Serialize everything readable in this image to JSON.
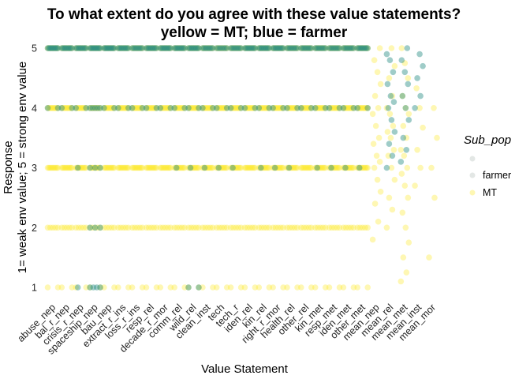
{
  "chart_data": {
    "type": "scatter",
    "title": "To what extent do you agree with these value statements?",
    "subtitle": "yellow = MT; blue = farmer",
    "xlabel": "Value Statement",
    "ylabel_line1": "Response",
    "ylabel_line2": "1= weak env value; 5 = strong env value",
    "yticks": [
      1,
      2,
      3,
      4,
      5
    ],
    "ylim": [
      0.75,
      5.2
    ],
    "grid": false,
    "legend": {
      "title": "Sub_pop",
      "placement": "right",
      "entries": [
        {
          "label": "",
          "color": "#c8d0cc"
        },
        {
          "label": "farmer",
          "color": "#2a8f84"
        },
        {
          "label": "MT",
          "color": "#fde725"
        }
      ]
    },
    "colors": {
      "farmer": "#2a8f84",
      "MT": "#fde725",
      "other": "#c8d0cc"
    },
    "categories": [
      "abuse_nep",
      "bal_r_nep",
      "crisis_r_nep",
      "spaceship_nep",
      "bau_nep",
      "extract_r_ins",
      "loss_r_ins",
      "resp_rel",
      "decade_r_mor",
      "comm_rel",
      "wild_rel",
      "clean_inst",
      "tech",
      "tech_r",
      "iden_rel",
      "kin_rel",
      "right_r_mor",
      "health_rel",
      "other_rel",
      "kin_met",
      "resp_met",
      "iden_met",
      "other_met",
      "mean_nep",
      "mean_rel",
      "mean_met",
      "mean_inst",
      "mean_mor"
    ],
    "series": [
      {
        "name": "farmer",
        "distribution": [
          [
            0,
            0,
            0,
            2,
            10
          ],
          [
            0,
            0,
            0,
            2,
            9
          ],
          [
            1,
            0,
            1,
            2,
            9
          ],
          [
            4,
            3,
            3,
            5,
            10
          ],
          [
            0,
            0,
            0,
            2,
            10
          ],
          [
            0,
            0,
            0,
            2,
            9
          ],
          [
            0,
            0,
            0,
            2,
            8
          ],
          [
            0,
            0,
            0,
            2,
            9
          ],
          [
            0,
            0,
            0,
            2,
            9
          ],
          [
            0,
            0,
            1,
            2,
            9
          ],
          [
            2,
            0,
            1,
            2,
            9
          ],
          [
            0,
            0,
            1,
            2,
            8
          ],
          [
            0,
            0,
            1,
            2,
            7
          ],
          [
            0,
            0,
            1,
            2,
            8
          ],
          [
            0,
            0,
            0,
            2,
            9
          ],
          [
            0,
            0,
            1,
            2,
            9
          ],
          [
            0,
            0,
            1,
            2,
            9
          ],
          [
            0,
            0,
            1,
            2,
            8
          ],
          [
            0,
            0,
            0,
            2,
            8
          ],
          [
            0,
            0,
            1,
            2,
            8
          ],
          [
            0,
            0,
            1,
            2,
            8
          ],
          [
            0,
            0,
            1,
            2,
            8
          ],
          [
            0,
            0,
            1,
            2,
            9
          ],
          [
            0,
            0,
            0,
            0,
            0
          ],
          [
            0,
            0,
            0,
            0,
            0
          ],
          [
            0,
            0,
            0,
            0,
            0
          ],
          [
            0,
            0,
            0,
            0,
            0
          ],
          [
            0,
            0,
            0,
            0,
            0
          ]
        ],
        "mean_values": [
          [],
          [
            3.0,
            3.2,
            3.4,
            3.6,
            3.8,
            4.0,
            4.1,
            4.2,
            4.4,
            4.6,
            4.8,
            4.9
          ],
          [
            3.1,
            3.3,
            3.5,
            3.8,
            4.0,
            4.2,
            4.4,
            4.6,
            4.8,
            5.0
          ],
          [
            4.0,
            4.2,
            4.5,
            4.7,
            4.9
          ],
          []
        ]
      },
      {
        "name": "MT",
        "distribution": [
          [
            2,
            5,
            10,
            10,
            9
          ],
          [
            2,
            5,
            10,
            10,
            9
          ],
          [
            2,
            5,
            10,
            10,
            9
          ],
          [
            2,
            5,
            10,
            10,
            9
          ],
          [
            2,
            5,
            10,
            10,
            9
          ],
          [
            2,
            5,
            10,
            10,
            9
          ],
          [
            2,
            5,
            10,
            10,
            9
          ],
          [
            2,
            5,
            10,
            10,
            9
          ],
          [
            2,
            5,
            10,
            10,
            9
          ],
          [
            2,
            5,
            10,
            10,
            9
          ],
          [
            2,
            5,
            10,
            10,
            9
          ],
          [
            2,
            5,
            10,
            10,
            9
          ],
          [
            2,
            5,
            10,
            10,
            9
          ],
          [
            2,
            5,
            10,
            10,
            9
          ],
          [
            2,
            5,
            10,
            10,
            9
          ],
          [
            2,
            5,
            10,
            10,
            9
          ],
          [
            2,
            5,
            10,
            10,
            9
          ],
          [
            2,
            5,
            10,
            10,
            9
          ],
          [
            2,
            5,
            10,
            10,
            9
          ],
          [
            2,
            5,
            10,
            10,
            9
          ],
          [
            2,
            5,
            10,
            10,
            9
          ],
          [
            2,
            5,
            10,
            10,
            9
          ],
          [
            2,
            5,
            10,
            10,
            9
          ],
          [
            0,
            0,
            0,
            0,
            0
          ],
          [
            0,
            0,
            0,
            0,
            0
          ],
          [
            0,
            0,
            0,
            0,
            0
          ],
          [
            0,
            0,
            0,
            0,
            0
          ],
          [
            0,
            0,
            0,
            0,
            0
          ]
        ],
        "mean_values": [
          [
            1.8,
            2.1,
            2.4,
            2.6,
            2.8,
            3.0,
            3.1,
            3.2,
            3.4,
            3.5,
            3.7,
            3.9,
            4.0,
            4.2,
            4.4,
            4.6,
            4.8,
            5.0
          ],
          [
            2.0,
            2.3,
            2.5,
            2.8,
            3.0,
            3.2,
            3.3,
            3.5,
            3.6,
            3.7,
            3.9,
            4.0,
            4.2,
            4.5,
            4.7,
            5.0
          ],
          [
            1.1,
            1.25,
            1.5,
            1.75,
            2.0,
            2.25,
            2.5,
            2.7,
            2.9,
            3.0,
            3.2,
            3.3,
            3.5,
            3.7,
            3.9,
            4.0,
            4.2,
            4.5,
            4.75,
            5.0
          ],
          [
            2.7,
            3.0,
            3.3,
            3.67,
            4.0,
            4.33
          ],
          [
            1.5,
            2.5,
            3.0,
            3.5,
            4.0
          ]
        ]
      }
    ]
  }
}
